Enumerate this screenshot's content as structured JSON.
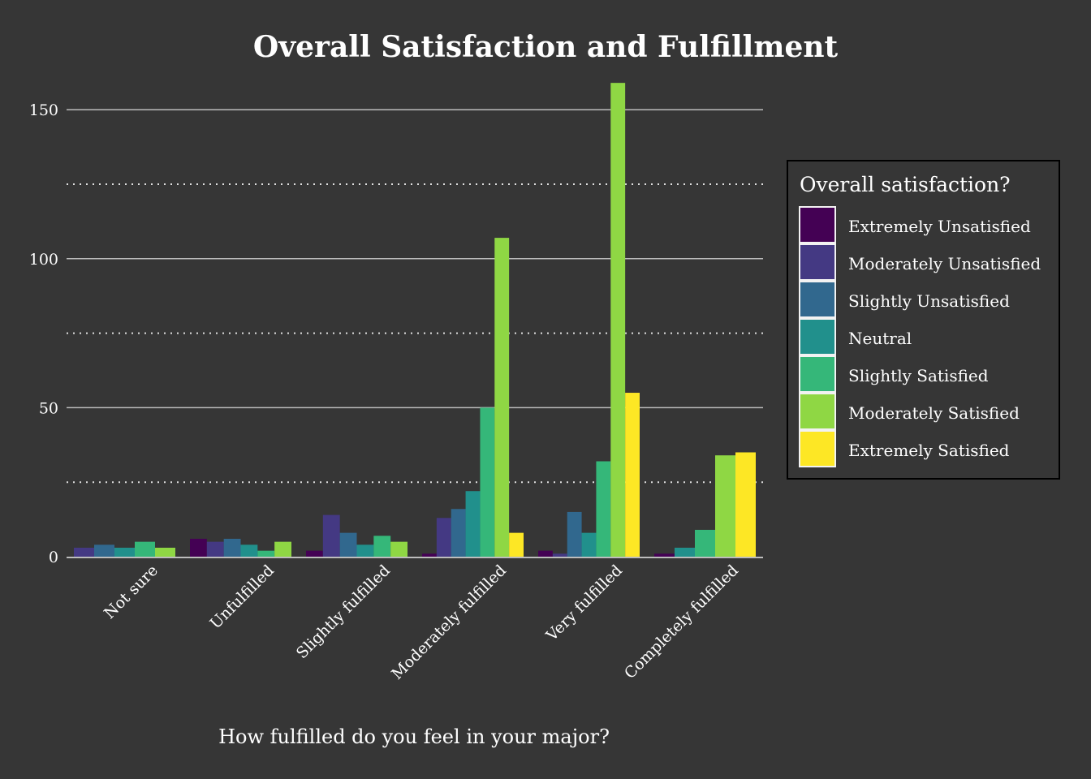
{
  "chart_data": {
    "type": "bar",
    "title": "Overall Satisfaction and Fulfillment",
    "xlabel": "How fulfilled do you feel in your major?",
    "ylabel": "",
    "ylim": [
      0,
      165
    ],
    "yticks": [
      0,
      50,
      100,
      150
    ],
    "ytick_labels": [
      "0",
      "50",
      "100",
      "150"
    ],
    "minor_grid": [
      25,
      75,
      125
    ],
    "grid": true,
    "categories": [
      "Not sure",
      "Unfulfilled",
      "Slightly fulfilled",
      "Moderately fulfilled",
      "Very fulfilled",
      "Completely fulfilled"
    ],
    "legend": {
      "title": "Overall satisfaction?",
      "placement": "right"
    },
    "series": [
      {
        "name": "Extremely Unsatisfied",
        "color": "#440154",
        "values": [
          null,
          6,
          2,
          1,
          2,
          1
        ]
      },
      {
        "name": "Moderately Unsatisfied",
        "color": "#443983",
        "values": [
          3,
          5,
          14,
          13,
          1,
          null
        ]
      },
      {
        "name": "Slightly Unsatisfied",
        "color": "#31688E",
        "values": [
          4,
          6,
          8,
          16,
          15,
          null
        ]
      },
      {
        "name": "Neutral",
        "color": "#21908C",
        "values": [
          3,
          4,
          4,
          22,
          8,
          3
        ]
      },
      {
        "name": "Slightly Satisfied",
        "color": "#35B779",
        "values": [
          5,
          2,
          7,
          50,
          32,
          9
        ]
      },
      {
        "name": "Moderately Satisfied",
        "color": "#8FD744",
        "values": [
          3,
          5,
          5,
          107,
          159,
          34
        ]
      },
      {
        "name": "Extremely Satisfied",
        "color": "#FDE725",
        "values": [
          null,
          null,
          null,
          8,
          55,
          35
        ]
      }
    ]
  }
}
